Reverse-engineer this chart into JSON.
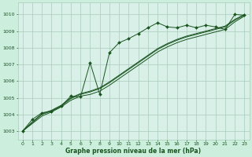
{
  "title": "Graphe pression niveau de la mer (hPa)",
  "bg_color": "#cceedd",
  "plot_bg": "#d8f0e8",
  "grid_color": "#aaccbb",
  "line_color": "#1a5520",
  "xlim": [
    -0.5,
    23.5
  ],
  "ylim": [
    1002.5,
    1010.7
  ],
  "yticks": [
    1003,
    1004,
    1005,
    1006,
    1007,
    1008,
    1009,
    1010
  ],
  "xticks": [
    0,
    1,
    2,
    3,
    4,
    5,
    6,
    7,
    8,
    9,
    10,
    11,
    12,
    13,
    14,
    15,
    16,
    17,
    18,
    19,
    20,
    21,
    22,
    23
  ],
  "series_main": [
    1003.0,
    1003.7,
    1004.1,
    1004.2,
    1004.5,
    1005.1,
    1005.05,
    1007.1,
    1005.2,
    1007.7,
    1008.3,
    1008.55,
    1008.85,
    1009.2,
    1009.5,
    1009.25,
    1009.2,
    1009.35,
    1009.2,
    1009.35,
    1009.25,
    1009.1,
    1010.0,
    1009.95
  ],
  "series_line2": [
    1003.0,
    1003.45,
    1003.9,
    1004.15,
    1004.45,
    1004.85,
    1005.1,
    1005.2,
    1005.4,
    1005.75,
    1006.15,
    1006.55,
    1006.95,
    1007.35,
    1007.75,
    1008.05,
    1008.3,
    1008.5,
    1008.65,
    1008.8,
    1008.95,
    1009.1,
    1009.55,
    1009.9
  ],
  "series_line3": [
    1003.0,
    1003.5,
    1004.0,
    1004.2,
    1004.5,
    1004.95,
    1005.2,
    1005.35,
    1005.55,
    1005.9,
    1006.3,
    1006.7,
    1007.1,
    1007.5,
    1007.9,
    1008.2,
    1008.45,
    1008.65,
    1008.8,
    1008.95,
    1009.1,
    1009.25,
    1009.65,
    1009.95
  ],
  "series_line4": [
    1003.0,
    1003.55,
    1004.05,
    1004.25,
    1004.55,
    1005.0,
    1005.25,
    1005.4,
    1005.6,
    1005.95,
    1006.35,
    1006.75,
    1007.15,
    1007.55,
    1007.95,
    1008.25,
    1008.5,
    1008.7,
    1008.85,
    1009.0,
    1009.15,
    1009.3,
    1009.7,
    1010.0
  ]
}
